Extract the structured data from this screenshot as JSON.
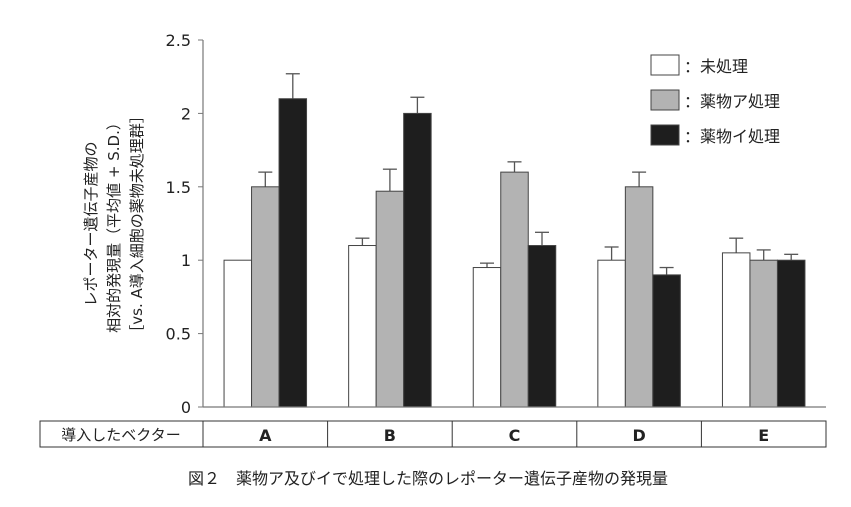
{
  "chart_data": {
    "type": "bar",
    "ylabel_lines": [
      "レポーター遺伝子産物の",
      "相対的発現量（平均値 + S.D.）",
      "［vs. A導入細胞の薬物未処理群］"
    ],
    "ylim": [
      0,
      2.5
    ],
    "yticks": [
      "0",
      "0.5",
      "1",
      "1.5",
      "2",
      "2.5"
    ],
    "ytick_values": [
      0,
      0.5,
      1,
      1.5,
      2,
      2.5
    ],
    "row_label": "導入したベクター",
    "categories": [
      "A",
      "B",
      "C",
      "D",
      "E"
    ],
    "series": [
      {
        "name": "：未処理",
        "color": "#ffffff",
        "values": [
          1.0,
          1.1,
          0.95,
          1.0,
          1.05
        ],
        "sd": [
          0,
          0.05,
          0.03,
          0.09,
          0.1
        ]
      },
      {
        "name": "：薬物ア処理",
        "color": "#b3b3b3",
        "values": [
          1.5,
          1.47,
          1.6,
          1.5,
          1.0
        ],
        "sd": [
          0.1,
          0.15,
          0.07,
          0.1,
          0.07
        ]
      },
      {
        "name": "：薬物イ処理",
        "color": "#1e1e1e",
        "values": [
          2.1,
          2.0,
          1.1,
          0.9,
          1.0
        ],
        "sd": [
          0.17,
          0.11,
          0.09,
          0.05,
          0.04
        ]
      }
    ],
    "legend_position": "top-right",
    "caption": "図２　薬物ア及びイで処理した際のレポーター遺伝子産物の発現量"
  }
}
